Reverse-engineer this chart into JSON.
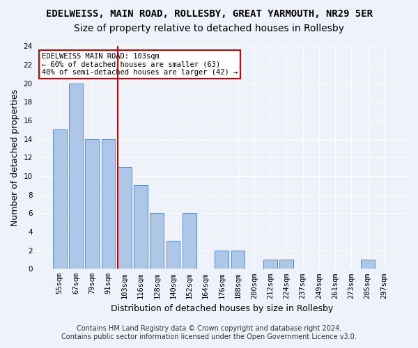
{
  "title": "EDELWEISS, MAIN ROAD, ROLLESBY, GREAT YARMOUTH, NR29 5ER",
  "subtitle": "Size of property relative to detached houses in Rollesby",
  "xlabel": "Distribution of detached houses by size in Rollesby",
  "ylabel": "Number of detached properties",
  "categories": [
    "55sqm",
    "67sqm",
    "79sqm",
    "91sqm",
    "103sqm",
    "116sqm",
    "128sqm",
    "140sqm",
    "152sqm",
    "164sqm",
    "176sqm",
    "188sqm",
    "200sqm",
    "212sqm",
    "224sqm",
    "237sqm",
    "249sqm",
    "261sqm",
    "273sqm",
    "285sqm",
    "297sqm"
  ],
  "values": [
    15,
    20,
    14,
    14,
    11,
    9,
    6,
    3,
    6,
    0,
    2,
    2,
    0,
    1,
    1,
    0,
    0,
    0,
    0,
    1,
    0
  ],
  "bar_color": "#aec6e8",
  "bar_edge_color": "#5a8fc4",
  "highlight_bar_index": 4,
  "highlight_color": "#cc0000",
  "annotation_text": "EDELWEISS MAIN ROAD: 103sqm\n← 60% of detached houses are smaller (63)\n40% of semi-detached houses are larger (42) →",
  "annotation_box_color": "#ffffff",
  "annotation_box_edge": "#cc0000",
  "ylim": [
    0,
    24
  ],
  "yticks": [
    0,
    2,
    4,
    6,
    8,
    10,
    12,
    14,
    16,
    18,
    20,
    22,
    24
  ],
  "footer_line1": "Contains HM Land Registry data © Crown copyright and database right 2024.",
  "footer_line2": "Contains public sector information licensed under the Open Government Licence v3.0.",
  "background_color": "#eef3fb",
  "grid_color": "#ffffff",
  "title_fontsize": 10,
  "subtitle_fontsize": 10,
  "axis_label_fontsize": 9,
  "tick_fontsize": 7.5,
  "footer_fontsize": 7
}
